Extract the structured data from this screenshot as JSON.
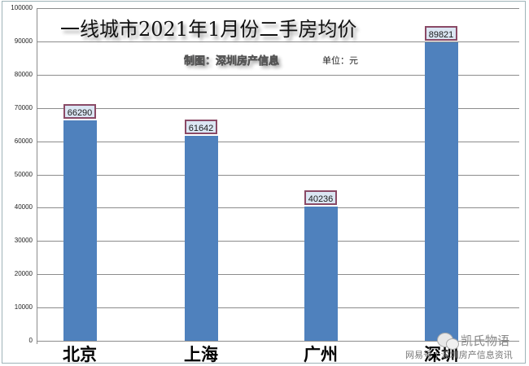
{
  "chart_data": {
    "type": "bar",
    "title": "一线城市2021年1月份二手房均价",
    "subtitle": "制图：深圳房产信息",
    "unit": "单位：元",
    "categories": [
      "北京",
      "上海",
      "广州",
      "深圳"
    ],
    "values": [
      66290,
      61642,
      40236,
      89821
    ],
    "data_labels": [
      "66290",
      "61642",
      "40236",
      "89821"
    ],
    "xlabel": "",
    "ylabel": "",
    "ylim": [
      0,
      100000
    ],
    "yticks": [
      "0",
      "10000",
      "20000",
      "30000",
      "40000",
      "50000",
      "60000",
      "70000",
      "80000",
      "90000",
      "100000"
    ],
    "grid": true,
    "legend": null,
    "bar_color": "#4f81bd",
    "label_box_fill": "#dbe6f3",
    "label_box_border": "#8a4a66"
  },
  "watermark": {
    "line1": "凯氏物语",
    "line2": "网易号 | 深圳房产信息资讯"
  }
}
